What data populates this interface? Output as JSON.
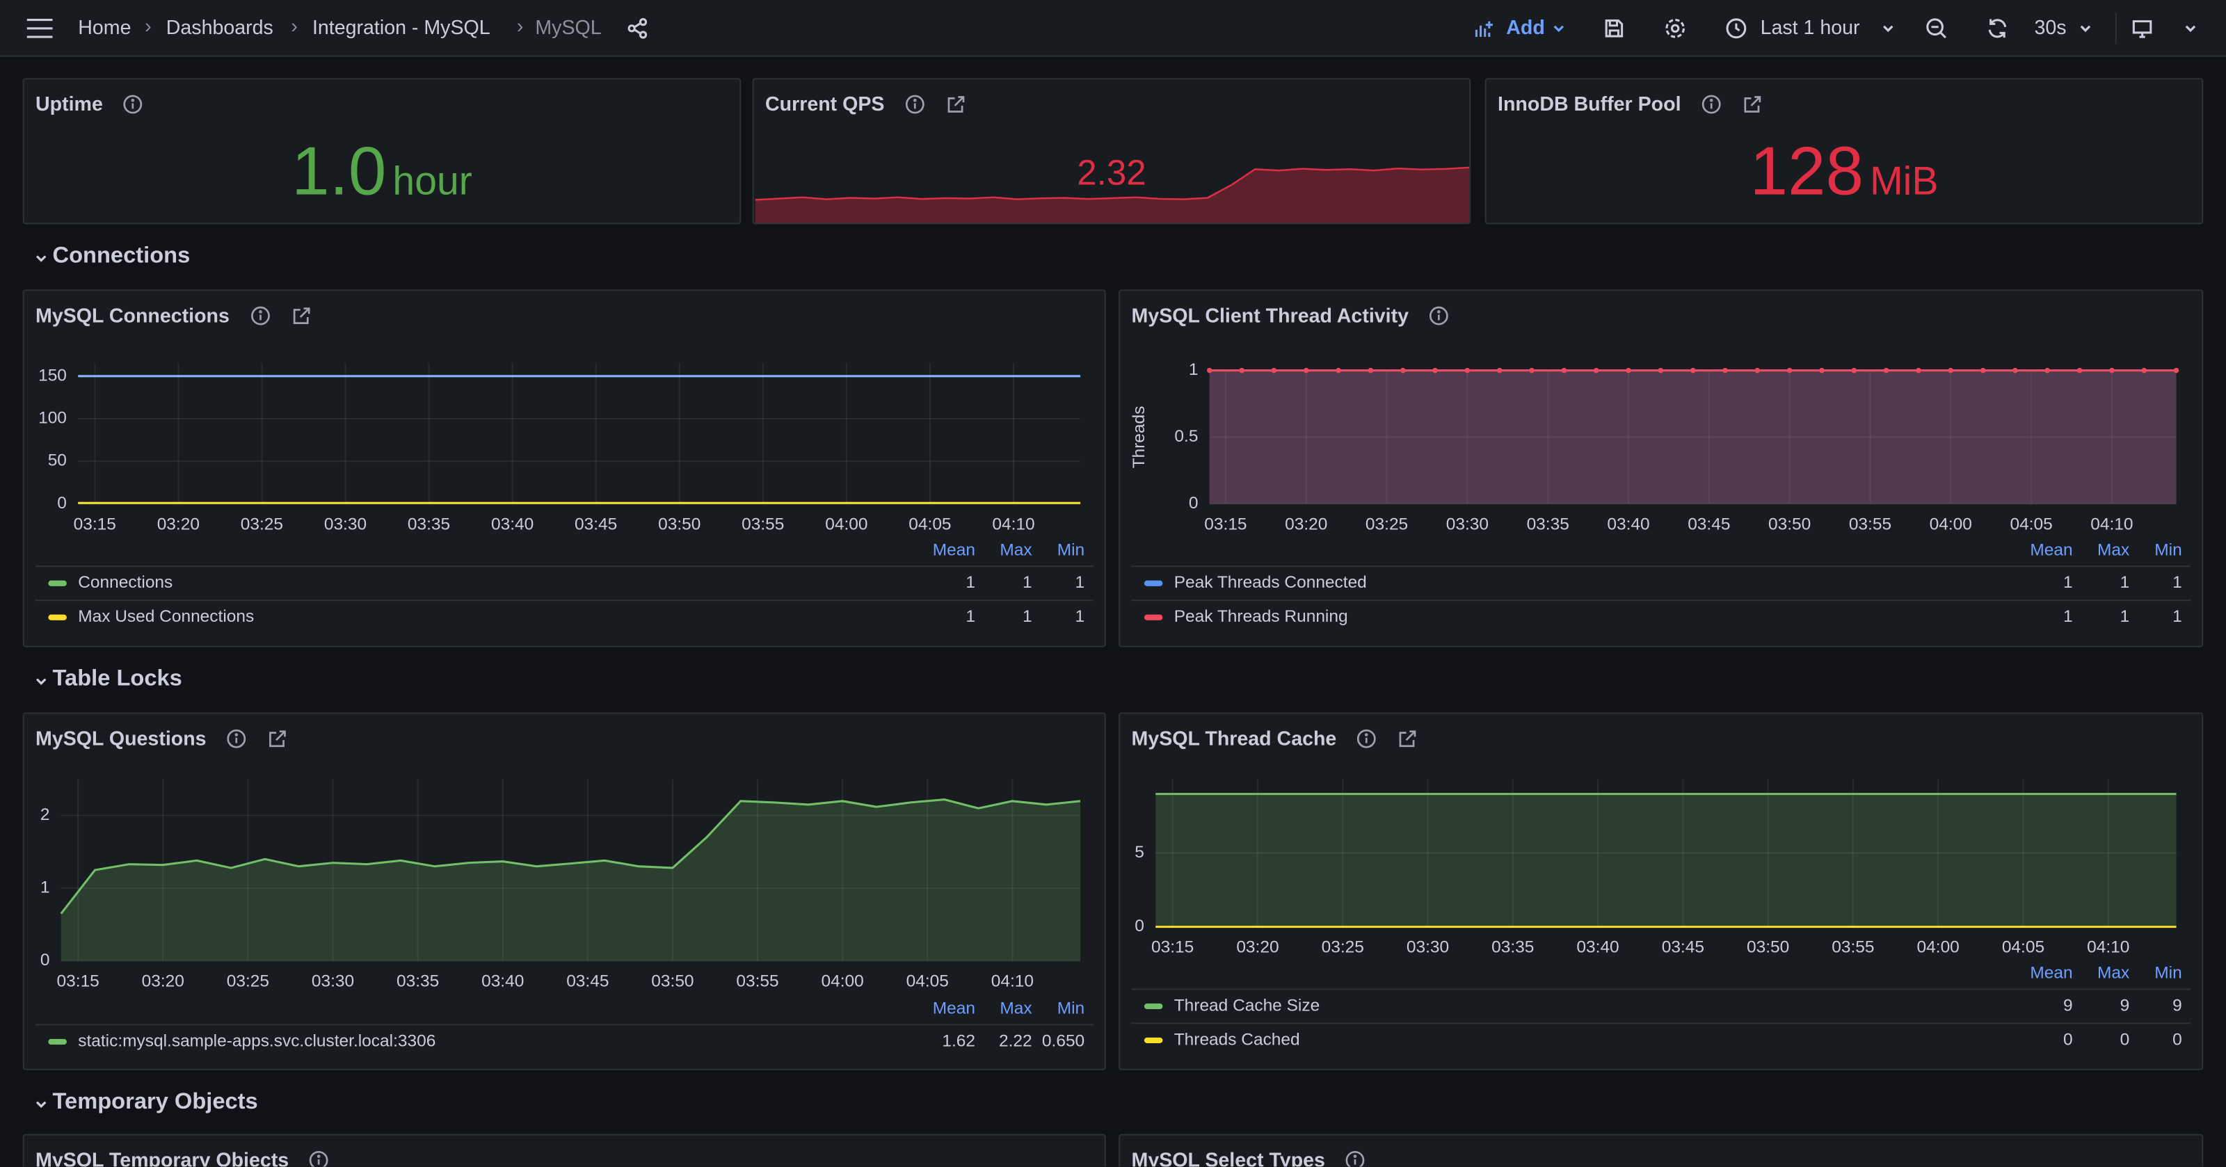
{
  "header": {
    "breadcrumbs": [
      "Home",
      "Dashboards",
      "Integration - MySQL",
      "MySQL"
    ],
    "add": "Add",
    "time_range": "Last 1 hour",
    "refresh": "30s"
  },
  "stats": [
    {
      "title": "Uptime",
      "value": "1.0",
      "unit": "hour",
      "color": "#56a64b"
    },
    {
      "title": "Current QPS",
      "value": "2.32",
      "color": "#e02f44",
      "sparkline": [
        1.0,
        1.05,
        1.1,
        1.02,
        1.08,
        1.05,
        1.1,
        1.03,
        1.07,
        1.05,
        1.1,
        1.02,
        1.06,
        1.08,
        1.03,
        1.07,
        1.1,
        1.04,
        1.02,
        1.08,
        1.6,
        2.25,
        2.2,
        2.27,
        2.22,
        2.25,
        2.2,
        2.28,
        2.24,
        2.26,
        2.32
      ]
    },
    {
      "title": "InnoDB Buffer Pool",
      "value": "128",
      "unit": "MiB",
      "color": "#e02f44"
    }
  ],
  "legend_columns": [
    "Mean",
    "Max",
    "Min"
  ],
  "time_axis": {
    "xlim": [
      0,
      30
    ],
    "xticks": [
      {
        "value": 0.5,
        "label": "03:15"
      },
      {
        "value": 3,
        "label": "03:20"
      },
      {
        "value": 5.5,
        "label": "03:25"
      },
      {
        "value": 8,
        "label": "03:30"
      },
      {
        "value": 10.5,
        "label": "03:35"
      },
      {
        "value": 13,
        "label": "03:40"
      },
      {
        "value": 15.5,
        "label": "03:45"
      },
      {
        "value": 18,
        "label": "03:50"
      },
      {
        "value": 20.5,
        "label": "03:55"
      },
      {
        "value": 23,
        "label": "04:00"
      },
      {
        "value": 25.5,
        "label": "04:05"
      },
      {
        "value": 28,
        "label": "04:10"
      }
    ]
  },
  "rows": [
    {
      "title": "Connections",
      "panels": [
        {
          "title": "MySQL Connections",
          "chart": {
            "type": "line",
            "ylim": [
              0,
              165
            ],
            "yticks": [
              0,
              50,
              100,
              150
            ],
            "fill": false,
            "points": false,
            "series": [
              {
                "color": "#8ab8ff",
                "values": [
                  150,
                  150,
                  150,
                  150,
                  150,
                  150,
                  150,
                  150,
                  150,
                  150,
                  150,
                  150,
                  150,
                  150,
                  150,
                  150,
                  150,
                  150,
                  150,
                  150,
                  150,
                  150,
                  150,
                  150,
                  150,
                  150,
                  150,
                  150,
                  150,
                  150,
                  150
                ]
              },
              {
                "name": "Connections",
                "color": "#73bf69",
                "values": [
                  1,
                  1,
                  1,
                  1,
                  1,
                  1,
                  1,
                  1,
                  1,
                  1,
                  1,
                  1,
                  1,
                  1,
                  1,
                  1,
                  1,
                  1,
                  1,
                  1,
                  1,
                  1,
                  1,
                  1,
                  1,
                  1,
                  1,
                  1,
                  1,
                  1,
                  1
                ],
                "legend": [
                  "1",
                  "1",
                  "1"
                ]
              },
              {
                "name": "Max Used Connections",
                "color": "#fade2a",
                "values": [
                  1,
                  1,
                  1,
                  1,
                  1,
                  1,
                  1,
                  1,
                  1,
                  1,
                  1,
                  1,
                  1,
                  1,
                  1,
                  1,
                  1,
                  1,
                  1,
                  1,
                  1,
                  1,
                  1,
                  1,
                  1,
                  1,
                  1,
                  1,
                  1,
                  1,
                  1
                ],
                "legend": [
                  "1",
                  "1",
                  "1"
                ]
              }
            ]
          }
        },
        {
          "title": "MySQL Client Thread Activity",
          "chart": {
            "type": "line",
            "ylabel": "Threads",
            "ylim": [
              0,
              1
            ],
            "yticks": [
              0,
              0.5,
              1
            ],
            "fill": true,
            "points": true,
            "series": [
              {
                "name": "Peak Threads Connected",
                "color": "#5794f2",
                "values": [
                  1,
                  1,
                  1,
                  1,
                  1,
                  1,
                  1,
                  1,
                  1,
                  1,
                  1,
                  1,
                  1,
                  1,
                  1,
                  1,
                  1,
                  1,
                  1,
                  1,
                  1,
                  1,
                  1,
                  1,
                  1,
                  1,
                  1,
                  1,
                  1,
                  1,
                  1
                ],
                "legend": [
                  "1",
                  "1",
                  "1"
                ]
              },
              {
                "name": "Peak Threads Running",
                "color": "#f2495c",
                "values": [
                  1,
                  1,
                  1,
                  1,
                  1,
                  1,
                  1,
                  1,
                  1,
                  1,
                  1,
                  1,
                  1,
                  1,
                  1,
                  1,
                  1,
                  1,
                  1,
                  1,
                  1,
                  1,
                  1,
                  1,
                  1,
                  1,
                  1,
                  1,
                  1,
                  1,
                  1
                ],
                "legend": [
                  "1",
                  "1",
                  "1"
                ]
              }
            ]
          }
        }
      ]
    },
    {
      "title": "Table Locks",
      "panels": [
        {
          "title": "MySQL Questions",
          "chart": {
            "type": "line",
            "ylim": [
              0,
              2.5
            ],
            "yticks": [
              0,
              1,
              2
            ],
            "fill": true,
            "points": false,
            "series": [
              {
                "name": "static:mysql.sample-apps.svc.cluster.local:3306",
                "color": "#73bf69",
                "values": [
                  0.65,
                  1.25,
                  1.33,
                  1.32,
                  1.38,
                  1.28,
                  1.4,
                  1.3,
                  1.35,
                  1.33,
                  1.38,
                  1.3,
                  1.35,
                  1.37,
                  1.3,
                  1.34,
                  1.38,
                  1.3,
                  1.28,
                  1.7,
                  2.2,
                  2.18,
                  2.15,
                  2.2,
                  2.12,
                  2.18,
                  2.22,
                  2.1,
                  2.2,
                  2.15,
                  2.2
                ],
                "legend": [
                  "1.62",
                  "2.22",
                  "0.650"
                ]
              }
            ]
          }
        },
        {
          "title": "MySQL Thread Cache",
          "chart": {
            "type": "line",
            "ylim": [
              0,
              10
            ],
            "yticks": [
              0,
              5
            ],
            "fill": true,
            "points": false,
            "series": [
              {
                "name": "Thread Cache Size",
                "color": "#73bf69",
                "values": [
                  9,
                  9,
                  9,
                  9,
                  9,
                  9,
                  9,
                  9,
                  9,
                  9,
                  9,
                  9,
                  9,
                  9,
                  9,
                  9,
                  9,
                  9,
                  9,
                  9,
                  9,
                  9,
                  9,
                  9,
                  9,
                  9,
                  9,
                  9,
                  9,
                  9,
                  9
                ],
                "legend": [
                  "9",
                  "9",
                  "9"
                ]
              },
              {
                "name": "Threads Cached",
                "color": "#fade2a",
                "values": [
                  0,
                  0,
                  0,
                  0,
                  0,
                  0,
                  0,
                  0,
                  0,
                  0,
                  0,
                  0,
                  0,
                  0,
                  0,
                  0,
                  0,
                  0,
                  0,
                  0,
                  0,
                  0,
                  0,
                  0,
                  0,
                  0,
                  0,
                  0,
                  0,
                  0,
                  0
                ],
                "legend": [
                  "0",
                  "0",
                  "0"
                ]
              }
            ]
          }
        }
      ]
    },
    {
      "title": "Temporary Objects",
      "panels": [
        {
          "title": "MySQL Temporary Objects"
        },
        {
          "title": "MySQL Select Types"
        }
      ]
    }
  ]
}
